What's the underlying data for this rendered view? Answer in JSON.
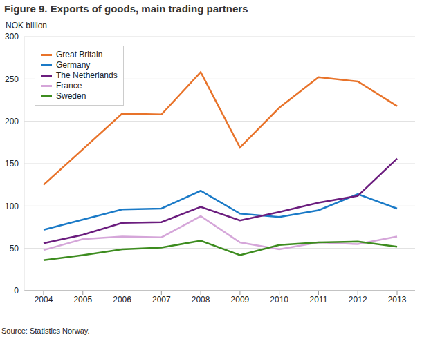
{
  "chart_data": {
    "type": "line",
    "title": "Figure 9. Exports of goods, main trading partners",
    "y_label": "NOK billion",
    "source": "Source: Statistics Norway.",
    "categories": [
      "2004",
      "2005",
      "2006",
      "2007",
      "2008",
      "2009",
      "2010",
      "2011",
      "2012",
      "2013"
    ],
    "series": [
      {
        "name": "Great Britain",
        "color": "#e8732a",
        "values": [
          125,
          167,
          209,
          208,
          258,
          169,
          216,
          252,
          247,
          218
        ]
      },
      {
        "name": "Germany",
        "color": "#1a7ac7",
        "values": [
          72,
          84,
          96,
          97,
          118,
          91,
          87,
          95,
          114,
          97
        ]
      },
      {
        "name": "The Netherlands",
        "color": "#6b1d7e",
        "values": [
          56,
          66,
          80,
          81,
          99,
          83,
          93,
          104,
          112,
          156
        ]
      },
      {
        "name": "France",
        "color": "#d5a6d9",
        "values": [
          48,
          61,
          64,
          63,
          88,
          57,
          49,
          57,
          55,
          64
        ]
      },
      {
        "name": "Sweden",
        "color": "#3d8c1f",
        "values": [
          36,
          42,
          49,
          51,
          59,
          42,
          54,
          57,
          58,
          52
        ]
      }
    ],
    "ylim": [
      0,
      300
    ],
    "yticks": [
      0,
      50,
      100,
      150,
      200,
      250,
      300
    ],
    "grid": true,
    "legend": "upper left"
  }
}
